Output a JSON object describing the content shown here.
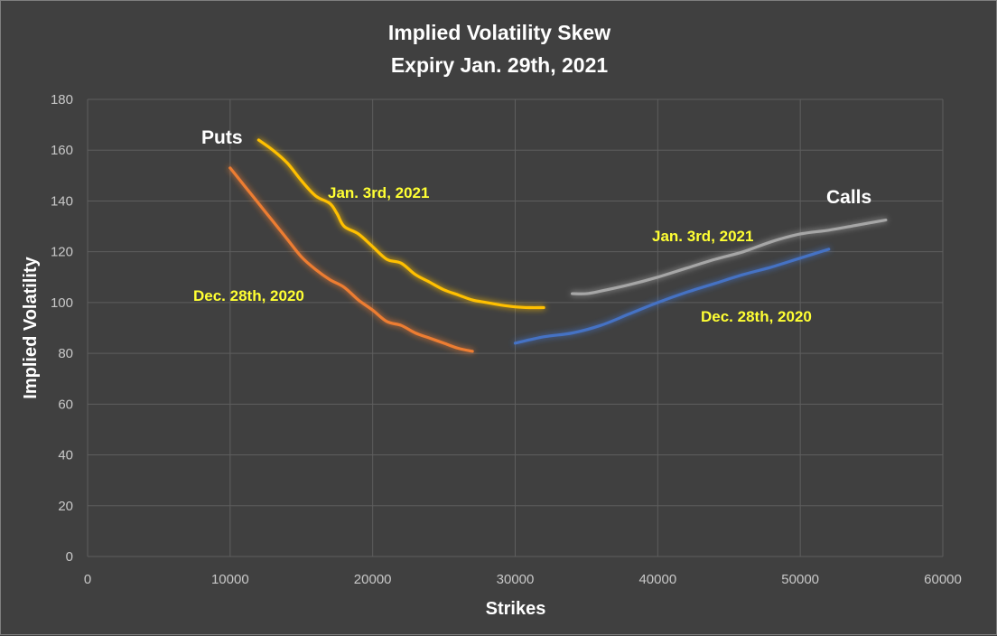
{
  "chart_data": {
    "type": "line",
    "title": "Implied Volatility Skew",
    "subtitle": "Expiry Jan. 29th, 2021",
    "xlabel": "Strikes",
    "ylabel": "Implied Volatility",
    "xlim": [
      0,
      60000
    ],
    "ylim": [
      0,
      180
    ],
    "xticks": [
      0,
      10000,
      20000,
      30000,
      40000,
      50000,
      60000
    ],
    "yticks": [
      0,
      20,
      40,
      60,
      80,
      100,
      120,
      140,
      160,
      180
    ],
    "grid": true,
    "group_labels": {
      "puts": "Puts",
      "calls": "Calls"
    },
    "series": [
      {
        "name": "Jan. 3rd, 2021",
        "group": "puts",
        "color": "#ffc000",
        "x": [
          12000,
          13000,
          14000,
          15000,
          16000,
          17000,
          17500,
          18000,
          19000,
          20000,
          21000,
          22000,
          23000,
          24000,
          25000,
          26000,
          27000,
          28000,
          29000,
          30000,
          31000,
          32000
        ],
        "y": [
          164,
          160,
          155,
          148,
          142,
          139,
          135,
          130,
          127,
          122,
          117,
          115.5,
          111,
          108,
          105,
          103,
          101,
          100,
          99,
          98.3,
          98,
          98
        ]
      },
      {
        "name": "Dec. 28th, 2020",
        "group": "puts",
        "color": "#ed7d31",
        "x": [
          10000,
          11000,
          12000,
          13000,
          14000,
          15000,
          16000,
          17000,
          18000,
          19000,
          20000,
          21000,
          22000,
          23000,
          24000,
          25000,
          26000,
          27000
        ],
        "y": [
          153,
          146,
          139,
          132,
          125,
          118,
          113,
          109,
          106,
          101,
          97,
          92.5,
          91,
          88,
          86,
          84,
          82,
          80.8
        ]
      },
      {
        "name": "Jan. 3rd, 2021",
        "group": "calls",
        "color": "#a6a6a6",
        "x": [
          34000,
          35000,
          36000,
          38000,
          40000,
          42000,
          44000,
          46000,
          48000,
          50000,
          52000,
          54000,
          56000
        ],
        "y": [
          103.5,
          103.5,
          104.5,
          107,
          110,
          113.5,
          117,
          120,
          124,
          127,
          128.5,
          130.5,
          132.5
        ]
      },
      {
        "name": "Dec. 28th, 2020",
        "group": "calls",
        "color": "#4472c4",
        "x": [
          30000,
          32000,
          34000,
          36000,
          38000,
          40000,
          42000,
          44000,
          46000,
          48000,
          50000,
          52000
        ],
        "y": [
          84,
          86.5,
          88,
          91,
          95.5,
          100,
          104,
          107.5,
          111,
          114,
          117.5,
          121
        ]
      }
    ]
  }
}
